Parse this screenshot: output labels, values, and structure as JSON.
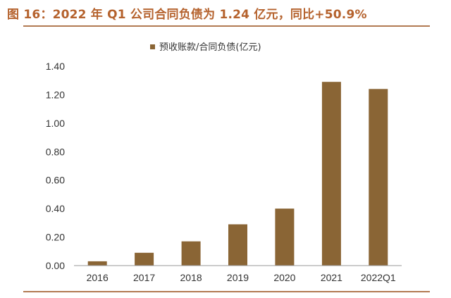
{
  "figure": {
    "title": "图 16：2022 年 Q1 公司合同负债为 1.24 亿元，同比+50.9%"
  },
  "colors": {
    "title": "#b5622d",
    "bar": "#8a6535",
    "rule": "#b27a52",
    "axis": "#999999"
  },
  "chart_data": {
    "type": "bar",
    "categories": [
      "2016",
      "2017",
      "2018",
      "2019",
      "2020",
      "2021",
      "2022Q1"
    ],
    "series": [
      {
        "name": "预收账款/合同负债(亿元)",
        "values": [
          0.03,
          0.09,
          0.17,
          0.29,
          0.4,
          1.29,
          1.24
        ]
      }
    ],
    "ylim": [
      0,
      1.4
    ],
    "yticks": [
      "0.00",
      "0.20",
      "0.40",
      "0.60",
      "0.80",
      "1.00",
      "1.20",
      "1.40"
    ],
    "xlabel": "",
    "ylabel": "",
    "grid": false,
    "legend_position": "top-center"
  }
}
